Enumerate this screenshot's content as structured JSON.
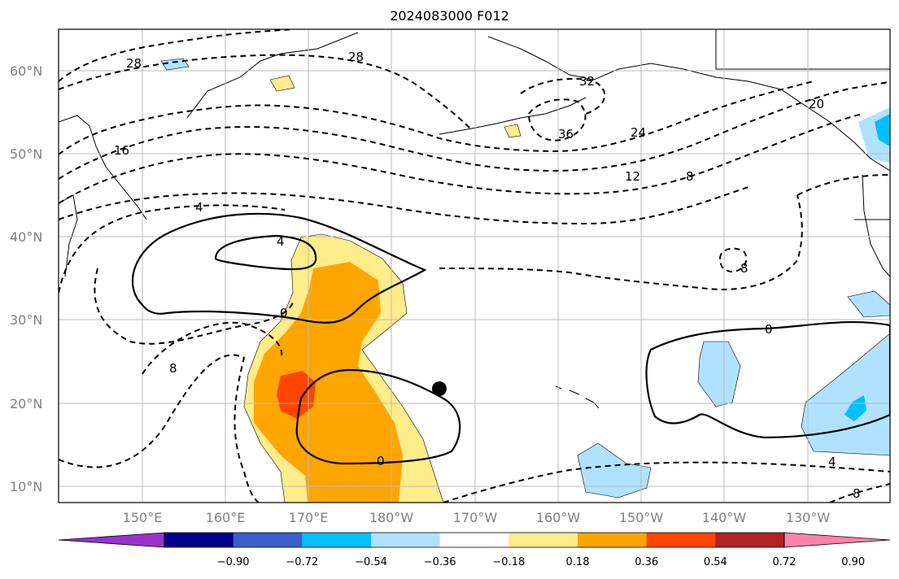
{
  "title": "2024083000 F012",
  "lat_ticks": [
    "60°N",
    "50°N",
    "40°N",
    "30°N",
    "20°N",
    "10°N"
  ],
  "lon_ticks": [
    "150°E",
    "160°E",
    "170°E",
    "180°W",
    "170°W",
    "160°W",
    "150°W",
    "140°W",
    "130°W"
  ],
  "colorbar": {
    "colors": [
      "#9932cc",
      "#00008b",
      "#3a5fcd",
      "#00bfff",
      "#b0e2ff",
      "#ffffff",
      "#ffec8b",
      "#ffa500",
      "#ff4500",
      "#b22222",
      "#ff82ab"
    ],
    "labels": [
      "−0.90",
      "−0.72",
      "−0.54",
      "−0.36",
      "−0.18",
      "0.18",
      "0.36",
      "0.54",
      "0.72",
      "0.90"
    ]
  },
  "contour_labels": [
    "28",
    "28",
    "16",
    "4",
    "4",
    "0",
    "0",
    "0",
    "8",
    "32",
    "36",
    "24",
    "12",
    "8",
    "20",
    "8",
    "4",
    "8"
  ],
  "marker": {
    "type": "point",
    "color": "#000000"
  }
}
